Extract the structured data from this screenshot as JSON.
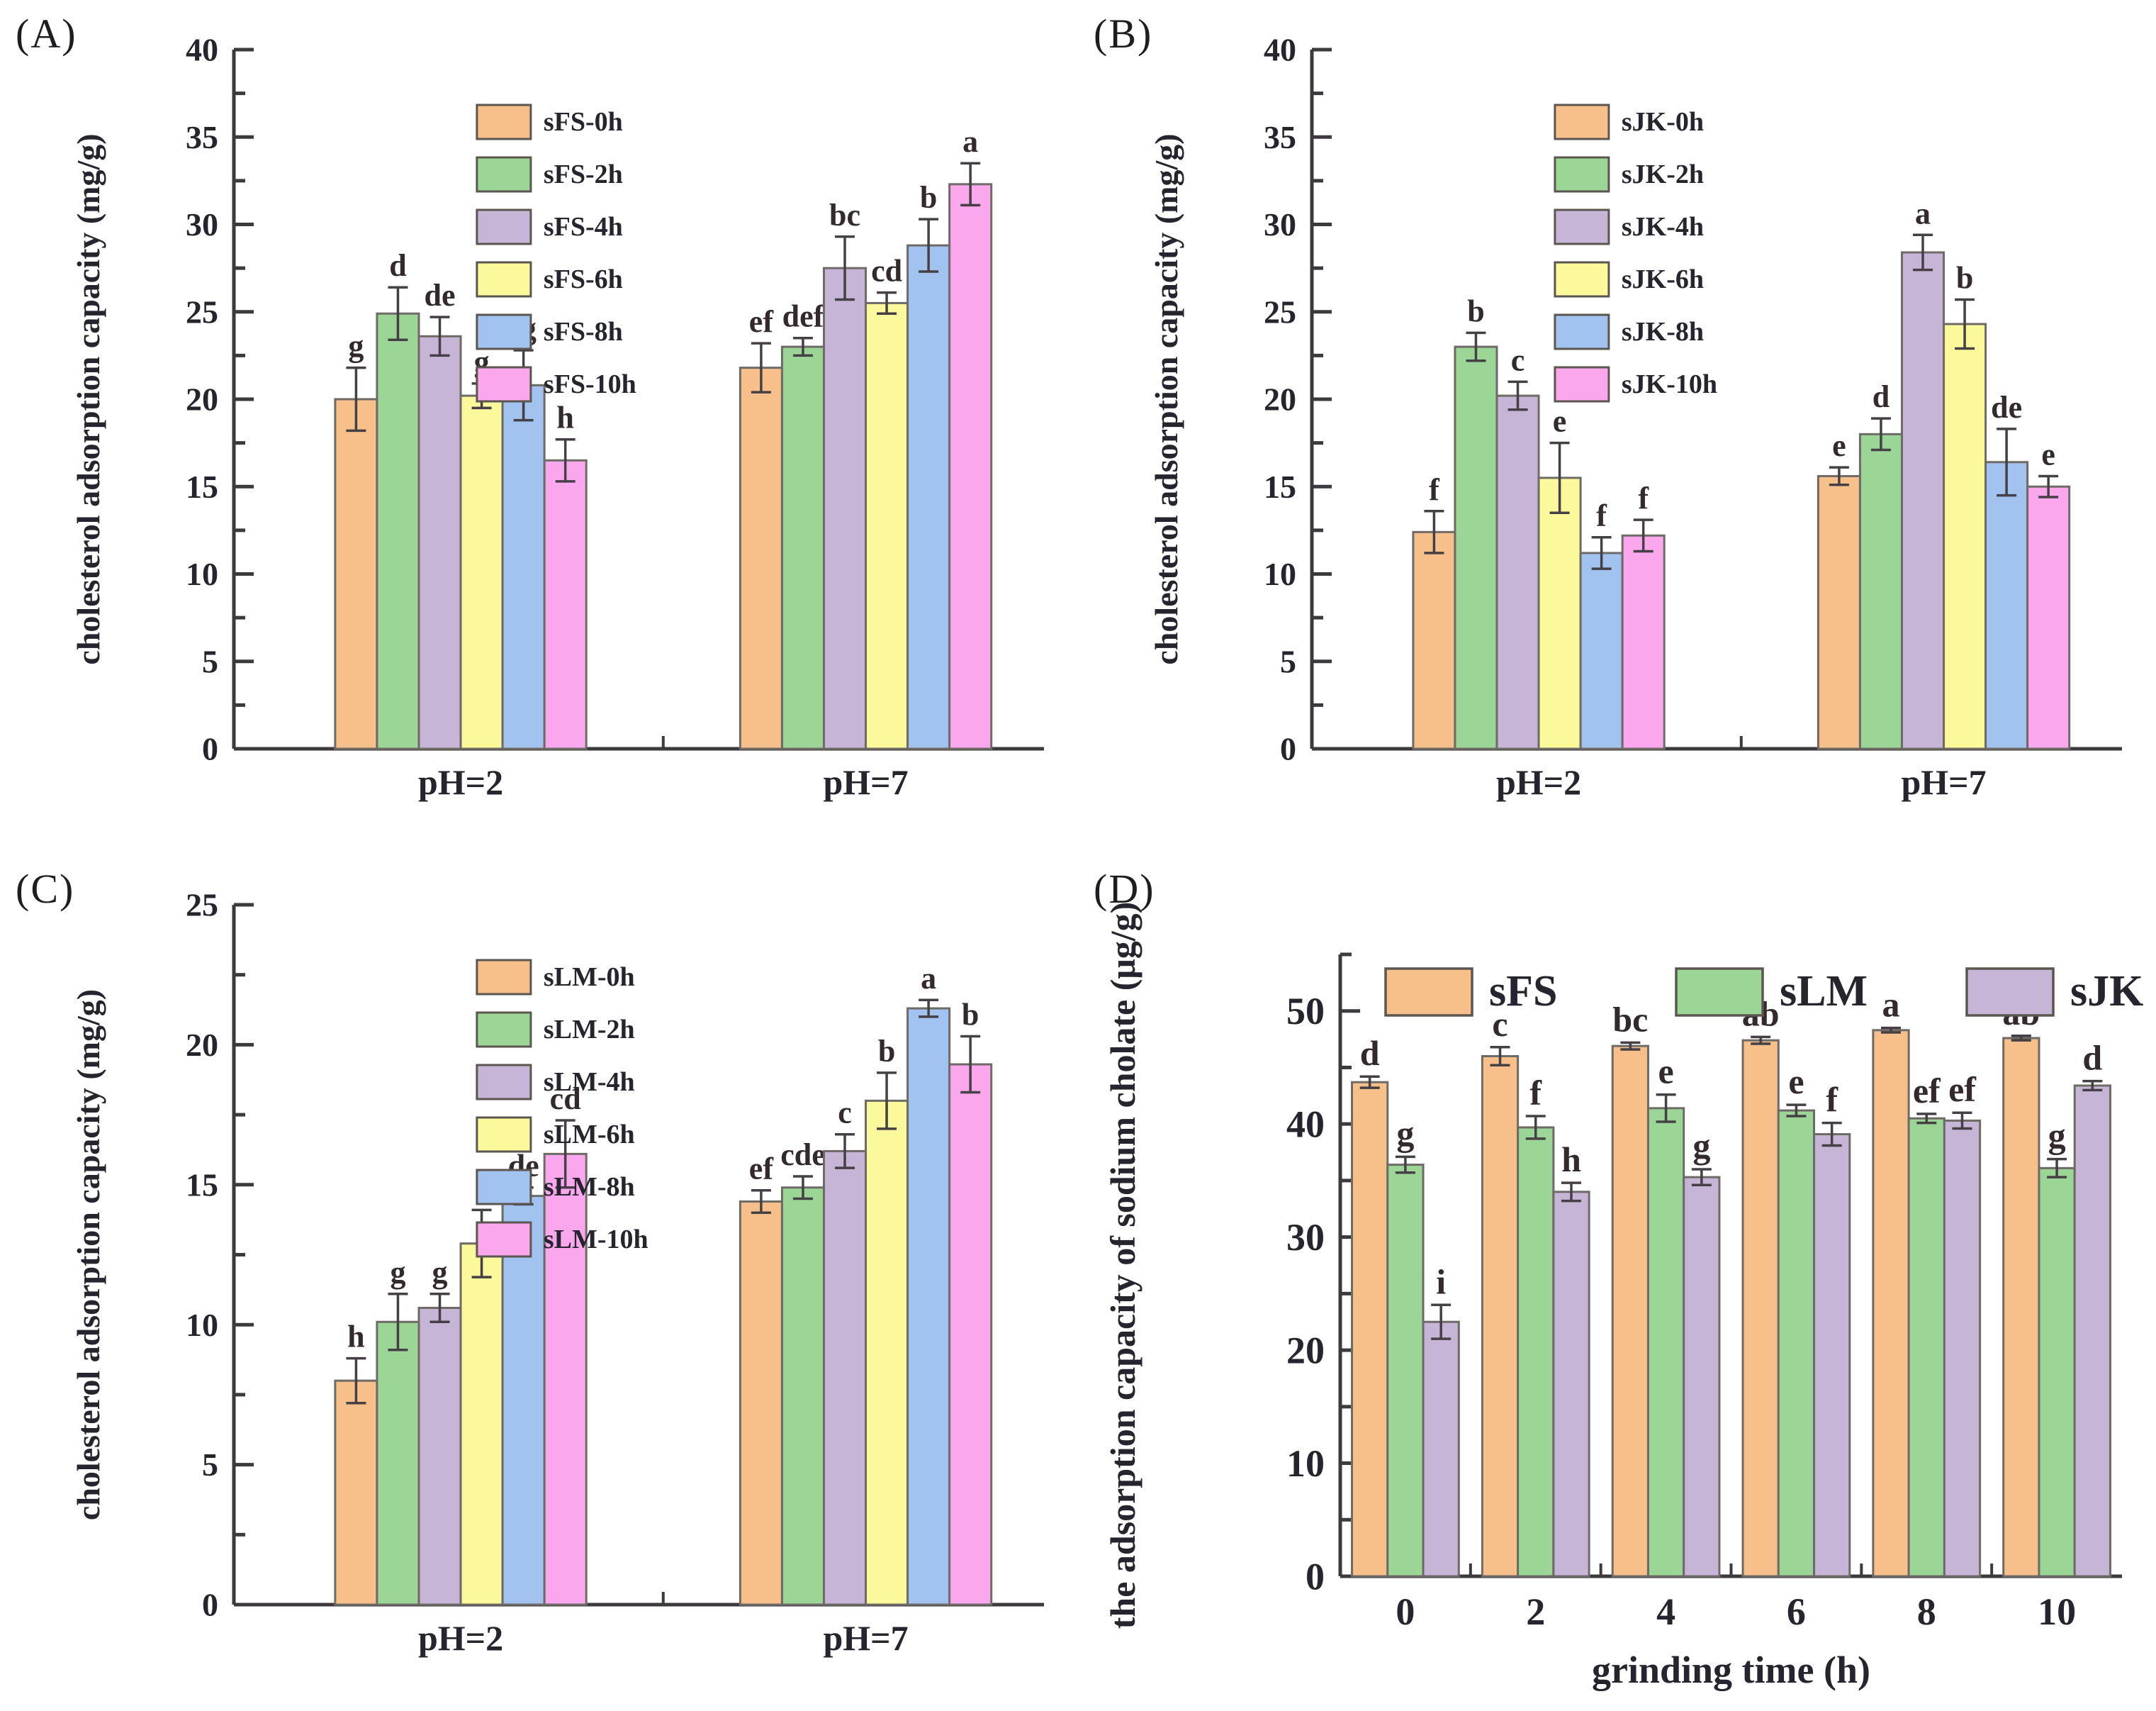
{
  "figure": {
    "background": "#ffffff",
    "axis_color": "#3d3a3e",
    "text_color": "#26242e",
    "sig_color": "#34292c",
    "error_color": "#454045",
    "bar_edge_color": "#6e6a66"
  },
  "chart_data": [
    {
      "panel_label": "(A)",
      "type": "bar",
      "title": "",
      "xlabel": "",
      "ylabel": "cholesterol adsorption capacity (mg/g)",
      "ylim": [
        0,
        40
      ],
      "ymajor": 5,
      "yminor": 2.5,
      "grid": false,
      "legend_position": "upper-middle-vertical",
      "categories": [
        "pH=2",
        "pH=7"
      ],
      "series": [
        {
          "name": "sFS-0h",
          "color": "#f7c08b",
          "values": [
            20.0,
            21.8
          ],
          "errors": [
            1.8,
            1.4
          ],
          "sig": [
            "g",
            "ef"
          ]
        },
        {
          "name": "sFS-2h",
          "color": "#9cd697",
          "values": [
            24.9,
            23.0
          ],
          "errors": [
            1.5,
            0.5
          ],
          "sig": [
            "d",
            "def"
          ]
        },
        {
          "name": "sFS-4h",
          "color": "#c6b5d6",
          "values": [
            23.6,
            27.5
          ],
          "errors": [
            1.1,
            1.8
          ],
          "sig": [
            "de",
            "bc"
          ]
        },
        {
          "name": "sFS-6h",
          "color": "#fbf99b",
          "values": [
            20.2,
            25.5
          ],
          "errors": [
            0.7,
            0.6
          ],
          "sig": [
            "g",
            "cd"
          ]
        },
        {
          "name": "sFS-8h",
          "color": "#a2c2ef",
          "values": [
            20.8,
            28.8
          ],
          "errors": [
            2.0,
            1.5
          ],
          "sig": [
            "fg",
            "b"
          ]
        },
        {
          "name": "sFS-10h",
          "color": "#fba7ed",
          "values": [
            16.5,
            32.3
          ],
          "errors": [
            1.2,
            1.2
          ],
          "sig": [
            "h",
            "a"
          ]
        }
      ]
    },
    {
      "panel_label": "(B)",
      "type": "bar",
      "title": "",
      "xlabel": "",
      "ylabel": "cholesterol adsorption capacity (mg/g)",
      "ylim": [
        0,
        40
      ],
      "ymajor": 5,
      "yminor": 2.5,
      "grid": false,
      "legend_position": "upper-middle-vertical",
      "categories": [
        "pH=2",
        "pH=7"
      ],
      "series": [
        {
          "name": "sJK-0h",
          "color": "#f7c08b",
          "values": [
            12.4,
            15.6
          ],
          "errors": [
            1.2,
            0.5
          ],
          "sig": [
            "f",
            "e"
          ]
        },
        {
          "name": "sJK-2h",
          "color": "#9cd697",
          "values": [
            23.0,
            18.0
          ],
          "errors": [
            0.8,
            0.9
          ],
          "sig": [
            "b",
            "d"
          ]
        },
        {
          "name": "sJK-4h",
          "color": "#c6b5d6",
          "values": [
            20.2,
            28.4
          ],
          "errors": [
            0.8,
            1.0
          ],
          "sig": [
            "c",
            "a"
          ]
        },
        {
          "name": "sJK-6h",
          "color": "#fbf99b",
          "values": [
            15.5,
            24.3
          ],
          "errors": [
            2.0,
            1.4
          ],
          "sig": [
            "e",
            "b"
          ]
        },
        {
          "name": "sJK-8h",
          "color": "#a2c2ef",
          "values": [
            11.2,
            16.4
          ],
          "errors": [
            0.9,
            1.9
          ],
          "sig": [
            "f",
            "de"
          ]
        },
        {
          "name": "sJK-10h",
          "color": "#fba7ed",
          "values": [
            12.2,
            15.0
          ],
          "errors": [
            0.9,
            0.6
          ],
          "sig": [
            "f",
            "e"
          ]
        }
      ]
    },
    {
      "panel_label": "(C)",
      "type": "bar",
      "title": "",
      "xlabel": "",
      "ylabel": "cholesterol adsorption capacity (mg/g)",
      "ylim": [
        0,
        25
      ],
      "ymajor": 5,
      "yminor": 2.5,
      "grid": false,
      "legend_position": "upper-middle-vertical",
      "categories": [
        "pH=2",
        "pH=7"
      ],
      "series": [
        {
          "name": "sLM-0h",
          "color": "#f7c08b",
          "values": [
            8.0,
            14.4
          ],
          "errors": [
            0.8,
            0.4
          ],
          "sig": [
            "h",
            "ef"
          ]
        },
        {
          "name": "sLM-2h",
          "color": "#9cd697",
          "values": [
            10.1,
            14.9
          ],
          "errors": [
            1.0,
            0.4
          ],
          "sig": [
            "g",
            "cde"
          ]
        },
        {
          "name": "sLM-4h",
          "color": "#c6b5d6",
          "values": [
            10.6,
            16.2
          ],
          "errors": [
            0.5,
            0.6
          ],
          "sig": [
            "g",
            "c"
          ]
        },
        {
          "name": "sLM-6h",
          "color": "#fbf99b",
          "values": [
            12.9,
            18.0
          ],
          "errors": [
            1.2,
            1.0
          ],
          "sig": [
            "f",
            "b"
          ]
        },
        {
          "name": "sLM-8h",
          "color": "#a2c2ef",
          "values": [
            14.6,
            21.3
          ],
          "errors": [
            0.3,
            0.3
          ],
          "sig": [
            "de",
            "a"
          ]
        },
        {
          "name": "sLM-10h",
          "color": "#fba7ed",
          "values": [
            16.1,
            19.3
          ],
          "errors": [
            1.2,
            1.0
          ],
          "sig": [
            "cd",
            "b"
          ]
        }
      ]
    },
    {
      "panel_label": "(D)",
      "type": "bar",
      "title": "",
      "xlabel": "grinding time (h)",
      "ylabel": "the adsorption capacity of sodium cholate (μg/g)",
      "ylim": [
        0,
        55
      ],
      "ymajor": 10,
      "yminor": 5,
      "grid": false,
      "legend_position": "top-horizontal",
      "categories": [
        "0",
        "2",
        "4",
        "6",
        "8",
        "10"
      ],
      "series": [
        {
          "name": "sFS",
          "color": "#f7c08b",
          "values": [
            43.7,
            46.0,
            46.9,
            47.4,
            48.3,
            47.6
          ],
          "errors": [
            0.5,
            0.8,
            0.3,
            0.3,
            0.2,
            0.2
          ],
          "sig": [
            "d",
            "c",
            "bc",
            "ab",
            "a",
            "ab"
          ]
        },
        {
          "name": "sLM",
          "color": "#9cd697",
          "values": [
            36.4,
            39.7,
            41.4,
            41.2,
            40.5,
            36.1
          ],
          "errors": [
            0.7,
            1.0,
            1.2,
            0.5,
            0.4,
            0.8
          ],
          "sig": [
            "g",
            "f",
            "e",
            "e",
            "ef",
            "g"
          ]
        },
        {
          "name": "sJK",
          "color": "#c6b5d6",
          "values": [
            22.5,
            34.0,
            35.3,
            39.1,
            40.3,
            43.4
          ],
          "errors": [
            1.5,
            0.8,
            0.7,
            1.0,
            0.7,
            0.4
          ],
          "sig": [
            "i",
            "h",
            "g",
            "f",
            "ef",
            "d"
          ]
        }
      ]
    }
  ]
}
